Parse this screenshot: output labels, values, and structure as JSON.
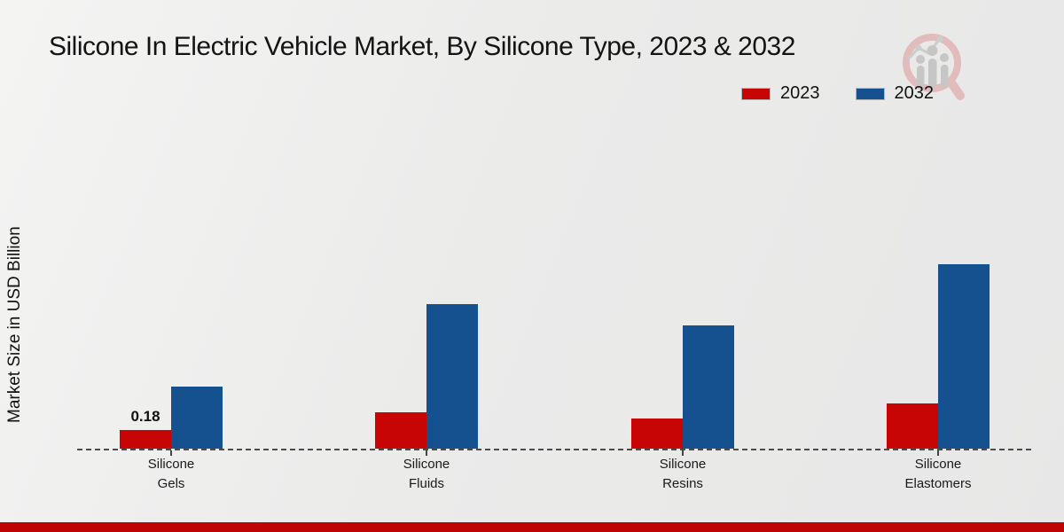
{
  "title": "Silicone In Electric Vehicle Market, By Silicone Type, 2023 & 2032",
  "y_axis_label": "Market Size in USD Billion",
  "legend": {
    "position": "top-right",
    "items": [
      {
        "label": "2023",
        "color": "#c80505"
      },
      {
        "label": "2032",
        "color": "#14518e"
      }
    ]
  },
  "chart_data": {
    "type": "bar",
    "categories": [
      "Silicone Gels",
      "Silicone Fluids",
      "Silicone Resins",
      "Silicone Elastomers"
    ],
    "series": [
      {
        "name": "2023",
        "color": "#c80505",
        "values": [
          0.18,
          0.35,
          0.29,
          0.44
        ],
        "data_labels": [
          "0.18",
          "",
          "",
          ""
        ]
      },
      {
        "name": "2032",
        "color": "#14518e",
        "values": [
          0.6,
          1.4,
          1.19,
          1.78
        ],
        "data_labels": [
          "",
          "",
          "",
          ""
        ]
      }
    ],
    "title": "Silicone In Electric Vehicle Market, By Silicone Type, 2023 & 2032",
    "xlabel": "",
    "ylabel": "Market Size in USD Billion",
    "ylim": [
      0,
      2.0
    ],
    "grid": false,
    "baseline_style": "dashed",
    "legend_position": "top-right"
  },
  "watermark": {
    "name": "market-research-logo-watermark"
  },
  "footer": {
    "color": "#be0404"
  }
}
